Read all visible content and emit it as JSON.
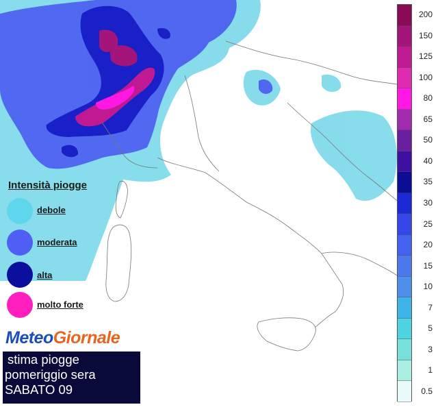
{
  "legend": {
    "title": "Intensità piogge",
    "items": [
      {
        "label": "debole",
        "color": "#5fd6ec"
      },
      {
        "label": "moderata",
        "color": "#4f5ff2"
      },
      {
        "label": "alta",
        "color": "#0b0f9e"
      },
      {
        "label": "molto forte",
        "color": "#ff1fbf"
      }
    ]
  },
  "logo": {
    "word1": "Meteo",
    "word2": "Giornale"
  },
  "caption": {
    "line1": "stima piogge",
    "line2": "pomeriggio sera",
    "line3": "SABATO 09"
  },
  "scale": {
    "labels": [
      "200",
      "150",
      "125",
      "100",
      "80",
      "65",
      "50",
      "40",
      "35",
      "30",
      "25",
      "20",
      "15",
      "10",
      "7",
      "5",
      "3",
      "1",
      "0.5"
    ],
    "colors": [
      "#8a0a56",
      "#a3157b",
      "#c01a93",
      "#df2bb0",
      "#ff18e4",
      "#a12baf",
      "#6a1f9e",
      "#3e0fa0",
      "#0b0d95",
      "#1d28d6",
      "#3547e8",
      "#4360ee",
      "#4c78ee",
      "#4f8fe9",
      "#3fb4e6",
      "#4dd4e0",
      "#77e0da",
      "#aaeee4",
      "#e8fbfa"
    ]
  }
}
